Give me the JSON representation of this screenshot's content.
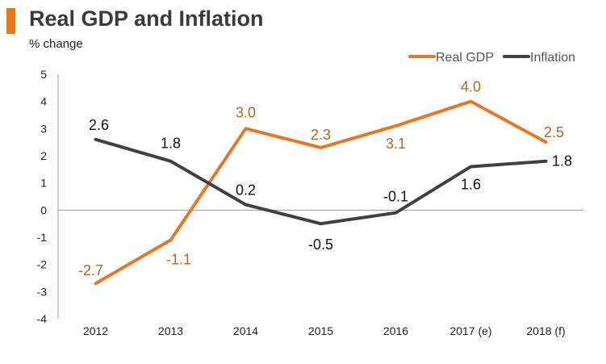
{
  "header": {
    "title": "Real GDP and Inflation",
    "subtitle": "% change",
    "accent_color": "#e87722"
  },
  "chart_data": {
    "type": "line",
    "x": [
      "2012",
      "2013",
      "2014",
      "2015",
      "2016",
      "2017 (e)",
      "2018 (f)"
    ],
    "ylim": [
      -4,
      5
    ],
    "yticks": [
      "5",
      "4",
      "3",
      "2",
      "1",
      "0",
      "-1",
      "-2",
      "-3",
      "-4"
    ],
    "grid": false,
    "legend_position": "top-right",
    "series": [
      {
        "name": "Real GDP",
        "color": "#e87722",
        "values": [
          -2.7,
          -1.1,
          3.0,
          2.3,
          3.1,
          4.0,
          2.5
        ],
        "labels": [
          "-2.7",
          "-1.1",
          "3.0",
          "2.3",
          "3.1",
          "4.0",
          "2.5"
        ]
      },
      {
        "name": "Inflation",
        "color": "#404040",
        "values": [
          2.6,
          1.8,
          0.2,
          -0.5,
          -0.1,
          1.6,
          1.8
        ],
        "labels": [
          "2.6",
          "1.8",
          "0.2",
          "-0.5",
          "-0.1",
          "1.6",
          "1.8"
        ]
      }
    ]
  }
}
